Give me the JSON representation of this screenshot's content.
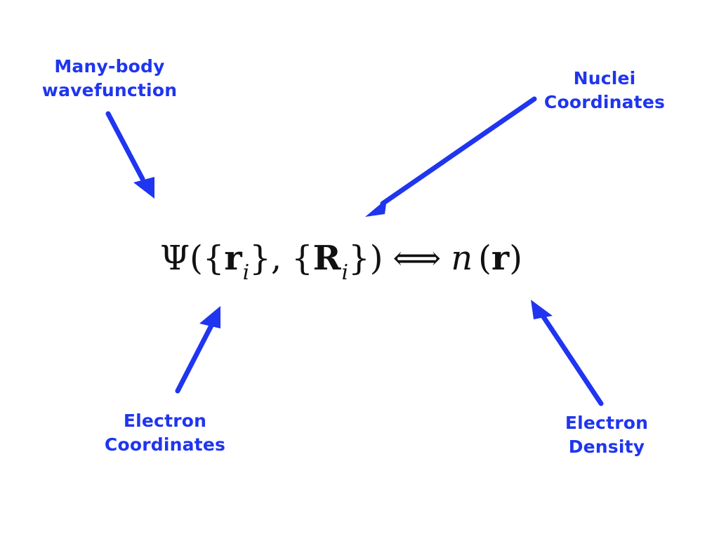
{
  "labels": {
    "many_body": [
      "Many-body",
      "wavefunction"
    ],
    "nuclei": [
      "Nuclei",
      "Coordinates"
    ],
    "electron_coords": [
      "Electron",
      "Coordinates"
    ],
    "electron_density": [
      "Electron",
      "Density"
    ]
  },
  "equation": {
    "psi": "Ψ",
    "open_paren": "(",
    "open_brace_1": "{",
    "r": "r",
    "i1": "i",
    "close_brace_1": "}",
    "comma": ",",
    "open_brace_2": "{",
    "R": "R",
    "i2": "i",
    "close_brace_2": "}",
    "close_paren": ")",
    "iff": "⟺",
    "n": "n",
    "open_paren_2": "(",
    "r2": "r",
    "close_paren_2": ")"
  },
  "colors": {
    "accent": "#1f35f0",
    "text": "#111111"
  }
}
